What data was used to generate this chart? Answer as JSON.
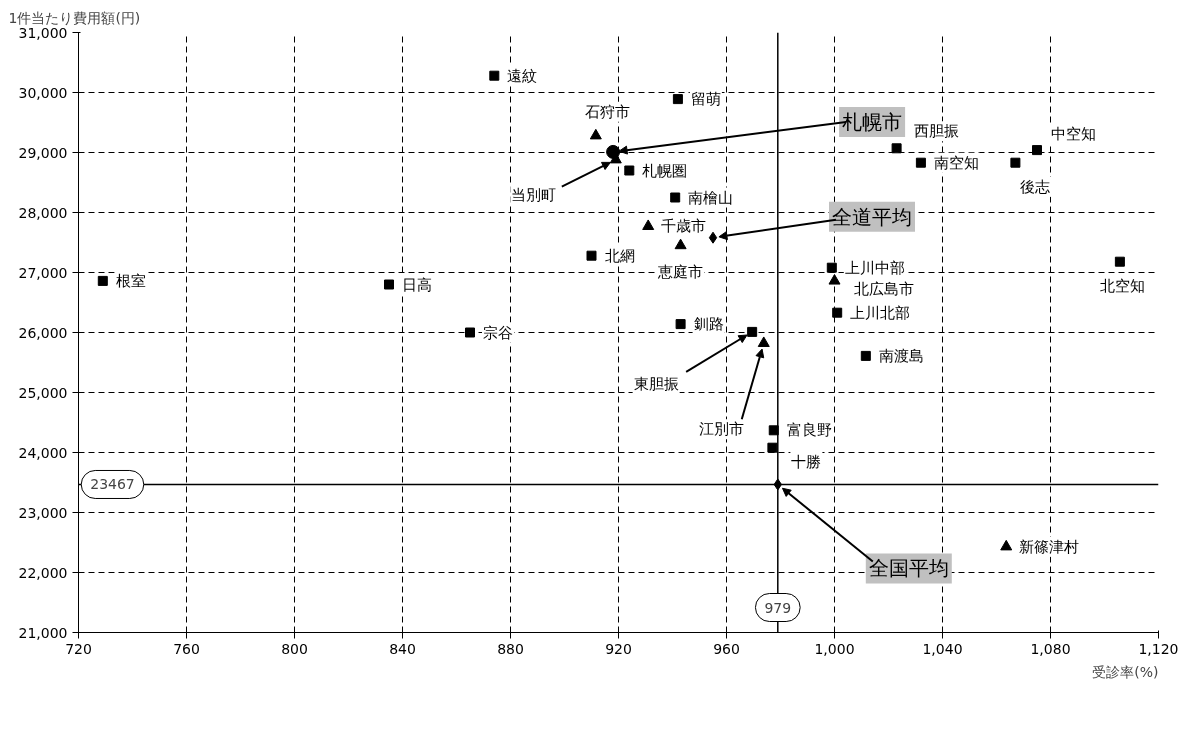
{
  "chart_data": {
    "type": "scatter",
    "xlabel": "受診率(%)",
    "ylabel": "1件当たり費用額(円)",
    "series": [
      {
        "color": "#000000",
        "marker": "square",
        "x": [
          874,
          942,
          924,
          941,
          910,
          999,
          1001,
          943,
          969.5,
          1011.6,
          977.5,
          977,
          1023,
          1032,
          1067,
          1075,
          1105.7,
          729,
          835,
          865
        ],
        "values": [
          30280,
          29890,
          28700,
          28250,
          27280,
          27080,
          26330,
          26140,
          26010,
          25610,
          24370,
          24080,
          29070,
          28830,
          28830,
          29040,
          27180,
          26860,
          26800,
          26000
        ]
      },
      {
        "color": "#000000",
        "marker": "triangle",
        "x": [
          911.6,
          919,
          931,
          943,
          1000,
          973.8,
          1063.6
        ],
        "values": [
          29280,
          28880,
          27770,
          27450,
          26860,
          25820,
          22430
        ]
      },
      {
        "color": "#000000",
        "marker": "circle",
        "x": [
          918
        ],
        "values": [
          29010
        ]
      },
      {
        "color": "#000000",
        "marker": "diamond",
        "x": [
          955,
          979
        ],
        "values": [
          27580,
          23467
        ]
      }
    ],
    "xlim": [
      720,
      1120
    ],
    "ylim": [
      21000,
      31000
    ],
    "xticks": [
      720,
      760,
      800,
      840,
      880,
      920,
      960,
      {
        "value": 1000,
        "label": "1,000"
      },
      {
        "value": 1040,
        "label": "1,040"
      },
      {
        "value": 1080,
        "label": "1,080"
      },
      {
        "value": 1120,
        "label": "1,120"
      }
    ],
    "yticks": [
      {
        "value": 21000,
        "label": "21,000"
      },
      {
        "value": 22000,
        "label": "22,000"
      },
      {
        "value": 23000,
        "label": "23,000"
      },
      {
        "value": 24000,
        "label": "24,000"
      },
      {
        "value": 25000,
        "label": "25,000"
      },
      {
        "value": 26000,
        "label": "26,000"
      },
      {
        "value": 27000,
        "label": "27,000"
      },
      {
        "value": 28000,
        "label": "28,000"
      },
      {
        "value": 29000,
        "label": "29,000"
      },
      {
        "value": 30000,
        "label": "30,000"
      },
      {
        "value": 31000,
        "label": "31,000"
      }
    ],
    "grid": true,
    "line_style": "dashed",
    "ref_lines": [
      {
        "axis": "x",
        "value": 979,
        "label": "979"
      },
      {
        "axis": "y",
        "value": 23467,
        "label": "23467"
      }
    ],
    "annotations": [
      {
        "text": "遠紋",
        "x": 874,
        "y": 30280
      },
      {
        "text": "留萌",
        "x": 942,
        "y": 29890
      },
      {
        "text": "石狩市",
        "x": 911.6,
        "y": 29280
      },
      {
        "text": "札幌市",
        "x": 918,
        "y": 29010
      },
      {
        "text": "当別町",
        "x": 919,
        "y": 28880
      },
      {
        "text": "札幌圏",
        "x": 924,
        "y": 28700
      },
      {
        "text": "南檜山",
        "x": 941,
        "y": 28250
      },
      {
        "text": "千歳市",
        "x": 931,
        "y": 27770
      },
      {
        "text": "全道平均",
        "x": 955,
        "y": 27580
      },
      {
        "text": "恵庭市",
        "x": 943,
        "y": 27450
      },
      {
        "text": "北網",
        "x": 910,
        "y": 27280
      },
      {
        "text": "上川中部",
        "x": 999,
        "y": 27080
      },
      {
        "text": "北広島市",
        "x": 1000,
        "y": 26860
      },
      {
        "text": "上川北部",
        "x": 1001,
        "y": 26330
      },
      {
        "text": "釧路",
        "x": 943,
        "y": 26140
      },
      {
        "text": "東胆振",
        "x": 969.5,
        "y": 26010
      },
      {
        "text": "江別市",
        "x": 973.8,
        "y": 25820
      },
      {
        "text": "南渡島",
        "x": 1011.6,
        "y": 25610
      },
      {
        "text": "富良野",
        "x": 977.5,
        "y": 24370
      },
      {
        "text": "十勝",
        "x": 977,
        "y": 24080
      },
      {
        "text": "全国平均",
        "x": 979,
        "y": 23467
      },
      {
        "text": "新篠津村",
        "x": 1063.6,
        "y": 22430
      },
      {
        "text": "西胆振",
        "x": 1023,
        "y": 29070
      },
      {
        "text": "南空知",
        "x": 1032,
        "y": 28830
      },
      {
        "text": "後志",
        "x": 1067,
        "y": 28830
      },
      {
        "text": "中空知",
        "x": 1075,
        "y": 29040
      },
      {
        "text": "北空知",
        "x": 1105.7,
        "y": 27180
      },
      {
        "text": "根室",
        "x": 729,
        "y": 26860
      },
      {
        "text": "日高",
        "x": 835,
        "y": 26800
      },
      {
        "text": "宗谷",
        "x": 865,
        "y": 26000
      }
    ]
  }
}
